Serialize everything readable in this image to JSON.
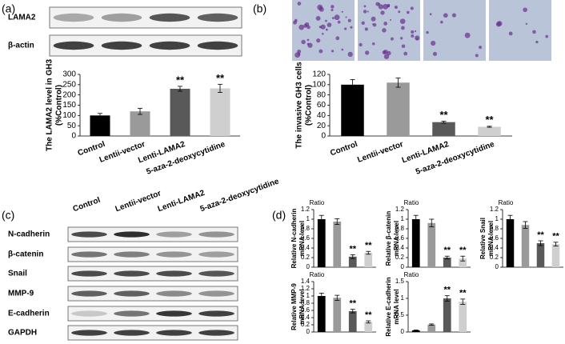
{
  "panel_labels": [
    "(a)",
    "(b)",
    "(c)",
    "(d)"
  ],
  "blots": {
    "a": [
      "LAMA2",
      "β-actin"
    ],
    "c": [
      "N-cadherin",
      "β-catenin",
      "Snail",
      "MMP-9",
      "E-cadherin",
      "GAPDH"
    ]
  },
  "blot_columns": [
    "Control",
    "Lentii-vector",
    "Lenti-LAMA2",
    "5-aza-2-deoxycytidine"
  ],
  "chart_data": [
    {
      "type": "bar",
      "y_label": [
        "The LAMA2 level in GH3",
        "(%Control)"
      ],
      "categories": [
        "Control",
        "Lentii-vector",
        "Lenti-LAMA2",
        "5-aza-2-deoxycytidine"
      ],
      "values": [
        100,
        120,
        230,
        232
      ],
      "errors": [
        10,
        15,
        12,
        20
      ],
      "significance": [
        null,
        null,
        "**",
        "**"
      ],
      "colors": [
        "#000000",
        "#9a9a9a",
        "#595959",
        "#cfcfcf"
      ],
      "ylim": [
        0,
        300
      ],
      "yticks": [
        0,
        50,
        100,
        150,
        200,
        250,
        300
      ]
    },
    {
      "type": "bar",
      "y_label": [
        "The invasive GH3 cells",
        "(%Control)"
      ],
      "categories": [
        "Control",
        "Lentii-vector",
        "Lenti-LAMA2",
        "5-aza-2-deoxycytidine"
      ],
      "values": [
        100,
        104,
        27,
        18
      ],
      "errors": [
        10,
        9,
        2,
        1
      ],
      "significance": [
        null,
        null,
        "**",
        "**"
      ],
      "colors": [
        "#000000",
        "#9a9a9a",
        "#595959",
        "#cfcfcf"
      ],
      "ylim": [
        0,
        120
      ],
      "yticks": [
        0,
        20,
        40,
        60,
        80,
        100,
        120
      ]
    },
    {
      "type": "bar",
      "title": "Ratio",
      "y_label": [
        "Relative N-cadherin",
        "mRNA level"
      ],
      "values": [
        1.0,
        0.95,
        0.22,
        0.3
      ],
      "errors": [
        0.08,
        0.06,
        0.04,
        0.03
      ],
      "significance": [
        null,
        null,
        "**",
        "**"
      ],
      "colors": [
        "#000000",
        "#9a9a9a",
        "#595959",
        "#cfcfcf"
      ],
      "ylim": [
        0,
        1.2
      ],
      "yticks": [
        0,
        0.2,
        0.4,
        0.6,
        0.8,
        1,
        1.2
      ]
    },
    {
      "type": "bar",
      "title": "Ratio",
      "y_label": [
        "Relative β-catenin",
        "mRNA level"
      ],
      "values": [
        1.0,
        0.92,
        0.2,
        0.18
      ],
      "errors": [
        0.08,
        0.08,
        0.03,
        0.05
      ],
      "significance": [
        null,
        null,
        "**",
        "**"
      ],
      "colors": [
        "#000000",
        "#9a9a9a",
        "#595959",
        "#cfcfcf"
      ],
      "ylim": [
        0,
        1.2
      ],
      "yticks": [
        0,
        0.2,
        0.4,
        0.6,
        0.8,
        1,
        1.2
      ]
    },
    {
      "type": "bar",
      "title": "Ratio",
      "y_label": [
        "Relative Snail",
        "mRNA level"
      ],
      "values": [
        1.0,
        0.88,
        0.5,
        0.48
      ],
      "errors": [
        0.08,
        0.07,
        0.05,
        0.04
      ],
      "significance": [
        null,
        null,
        "**",
        "**"
      ],
      "colors": [
        "#000000",
        "#9a9a9a",
        "#595959",
        "#cfcfcf"
      ],
      "ylim": [
        0,
        1.2
      ],
      "yticks": [
        0,
        0.2,
        0.4,
        0.6,
        0.8,
        1,
        1.2
      ]
    },
    {
      "type": "bar",
      "title": "Ratio",
      "y_label": [
        "Relative MMP-9",
        "mRNA level"
      ],
      "values": [
        1.0,
        0.95,
        0.58,
        0.28
      ],
      "errors": [
        0.08,
        0.07,
        0.05,
        0.03
      ],
      "significance": [
        null,
        null,
        "**",
        "**"
      ],
      "colors": [
        "#000000",
        "#9a9a9a",
        "#595959",
        "#cfcfcf"
      ],
      "ylim": [
        0,
        1.4
      ],
      "yticks": [
        0,
        0.2,
        0.4,
        0.6,
        0.8,
        1,
        1.2,
        1.4
      ]
    },
    {
      "type": "bar",
      "title": "Ratio",
      "y_label": [
        "Relative E-cadherin",
        "mRNA level"
      ],
      "values": [
        0.05,
        0.22,
        1.0,
        0.9
      ],
      "errors": [
        0.01,
        0.02,
        0.08,
        0.08
      ],
      "significance": [
        null,
        null,
        "**",
        "**"
      ],
      "colors": [
        "#000000",
        "#9a9a9a",
        "#595959",
        "#cfcfcf"
      ],
      "ylim": [
        0,
        1.5
      ],
      "yticks": [
        0,
        0.5,
        1,
        1.5
      ]
    }
  ]
}
